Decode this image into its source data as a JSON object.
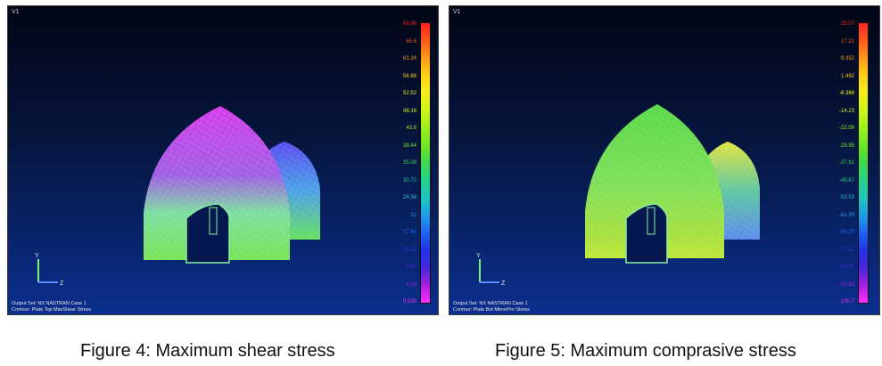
{
  "figures": [
    {
      "viewport_label": "V1",
      "caption": "Figure 4: Maximum shear stress",
      "output_set": "Output Set: NX NASTRAN Case 1",
      "contour": "Contour: Plate Top MaxShear Stress",
      "legend_ticks": [
        "69.96",
        "65.6",
        "61.24",
        "56.88",
        "52.52",
        "48.16",
        "43.8",
        "39.44",
        "35.08",
        "30.72",
        "26.36",
        "22",
        "17.64",
        "13.28",
        "8.92",
        "4.56",
        "0.200"
      ],
      "legend_colors": [
        "#ff2222",
        "#ff5a1e",
        "#ff9a18",
        "#ffd118",
        "#f4f01a",
        "#cdf51a",
        "#9cf01c",
        "#6ee626",
        "#3fd84e",
        "#24d28a",
        "#20c4c0",
        "#1e9ee6",
        "#1e64f0",
        "#2233e6",
        "#4626dc",
        "#a522e0",
        "#ff2cff"
      ],
      "object_colors": {
        "primary_top": "#d43cea",
        "primary_mid": "#a060e6",
        "primary_base": "#78e454",
        "secondary_top": "#5a4cf0",
        "secondary_base": "#68e060"
      }
    },
    {
      "viewport_label": "V1",
      "caption": "Figure 5: Maximum comprasive stress",
      "output_set": "Output Set: NX NASTRAN Case 1",
      "contour": "Contour: Plate Bot MinorPrn Stress",
      "legend_ticks": [
        "25.07",
        "17.21",
        "9.352",
        "1.492",
        "-6.368",
        "-14.23",
        "-22.09",
        "-29.95",
        "-37.81",
        "-45.67",
        "-53.53",
        "-61.39",
        "-69.25",
        "-77.11",
        "-84.97",
        "-92.83",
        "-100.7"
      ],
      "legend_colors": [
        "#ff2222",
        "#ff5a1e",
        "#ff9a18",
        "#ffd118",
        "#f4f01a",
        "#cdf51a",
        "#9cf01c",
        "#6ee626",
        "#3fd84e",
        "#24d28a",
        "#20c4c0",
        "#1e9ee6",
        "#1e64f0",
        "#2233e6",
        "#4626dc",
        "#a522e0",
        "#ff2cff"
      ],
      "object_colors": {
        "primary_top": "#5ad848",
        "primary_mid": "#7ce05a",
        "primary_base": "#c0e838",
        "secondary_top": "#e0e440",
        "secondary_base": "#5a8cf0"
      }
    }
  ]
}
